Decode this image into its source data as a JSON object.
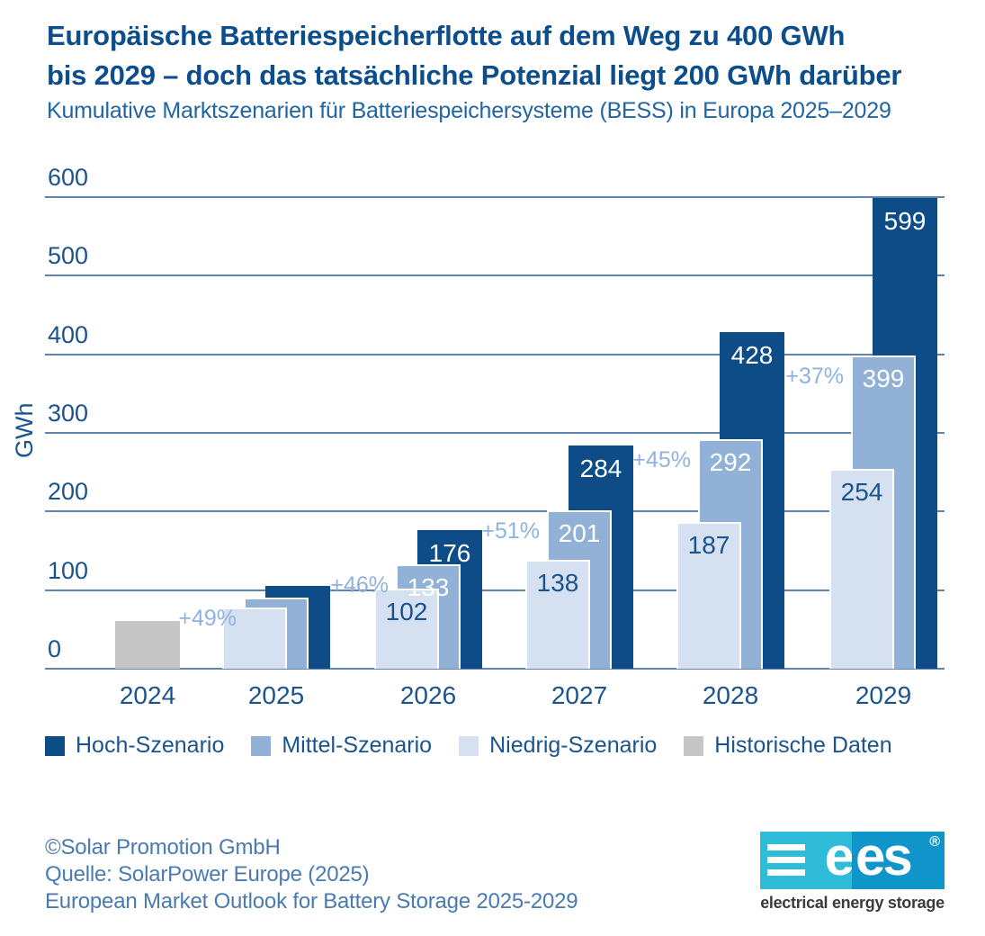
{
  "header": {
    "title_line1": "Europäische Batteriespeicherflotte auf dem Weg zu 400 GWh",
    "title_line2": "bis 2029 – doch das tatsächliche Potenzial liegt 200 GWh darüber",
    "subtitle": "Kumulative Marktszenarien für Batteriespeichersysteme (BESS) in Europa 2025–2029"
  },
  "chart_data": {
    "type": "bar",
    "title": "Europäische Batteriespeicherflotte auf dem Weg zu 400 GWh bis 2029 – doch das tatsächliche Potenzial liegt 200 GWh darüber",
    "subtitle": "Kumulative Marktszenarien für Batteriespeichersysteme (BESS) in Europa 2025–2029",
    "ylabel": "GWh",
    "ylim": [
      0,
      600
    ],
    "ytick_interval": 100,
    "yticks": [
      "0",
      "100",
      "200",
      "300",
      "400",
      "500",
      "600"
    ],
    "grid": true,
    "legend_position": "bottom",
    "categories": [
      "2024",
      "2025",
      "2026",
      "2027",
      "2028",
      "2029"
    ],
    "series": [
      {
        "name": "Hoch-Szenario",
        "color": "#0E4C87",
        "label_color": "#FFFFFF",
        "values": [
          null,
          105,
          176,
          284,
          428,
          599
        ],
        "labels": [
          "",
          "",
          "176",
          "284",
          "428",
          "599"
        ]
      },
      {
        "name": "Mittel-Szenario",
        "color": "#92B1D6",
        "label_color": "#FFFFFF",
        "values": [
          null,
          91,
          133,
          201,
          292,
          399
        ],
        "labels": [
          "",
          "",
          "133",
          "201",
          "292",
          "399"
        ]
      },
      {
        "name": "Niedrig-Szenario",
        "color": "#D5E1F0",
        "label_color": "#1A538E",
        "values": [
          null,
          78,
          102,
          138,
          187,
          254
        ],
        "labels": [
          "",
          "",
          "102",
          "138",
          "187",
          "254"
        ]
      },
      {
        "name": "Historische Daten",
        "color": "#C5C5C5",
        "label_color": "#1A538E",
        "values": [
          61,
          null,
          null,
          null,
          null,
          null
        ],
        "labels": [
          "",
          "",
          "",
          "",
          "",
          ""
        ]
      }
    ],
    "growth_labels": [
      {
        "category": "2025",
        "text": "+49%"
      },
      {
        "category": "2026",
        "text": "+46%"
      },
      {
        "category": "2027",
        "text": "+51%"
      },
      {
        "category": "2028",
        "text": "+45%"
      },
      {
        "category": "2029",
        "text": "+37%"
      }
    ]
  },
  "legend": {
    "items": [
      {
        "label": "Hoch-Szenario",
        "color": "#0E4C87"
      },
      {
        "label": "Mittel-Szenario",
        "color": "#92B1D6"
      },
      {
        "label": "Niedrig-Szenario",
        "color": "#D5E1F0"
      },
      {
        "label": "Historische Daten",
        "color": "#C5C5C5"
      }
    ]
  },
  "footer": {
    "lines": [
      "©Solar Promotion GmbH",
      "Quelle: SolarPower Europe (2025)",
      "European Market Outlook for Battery Storage 2025-2029"
    ]
  },
  "logo": {
    "brand_left": "e",
    "brand_right": "es",
    "registered": "®",
    "caption": "electrical energy storage",
    "color_left": "#2EBCD9",
    "color_right": "#0F95C9"
  },
  "palette": {
    "title_text": "#0C4D8C",
    "subtitle_text": "#2065A4",
    "axis_text": "#1A538E",
    "gridline": "#5D85AF",
    "growth_label_text": "#8FB2DE",
    "footer_text": "#497AB1",
    "background": "#FFFFFF"
  }
}
